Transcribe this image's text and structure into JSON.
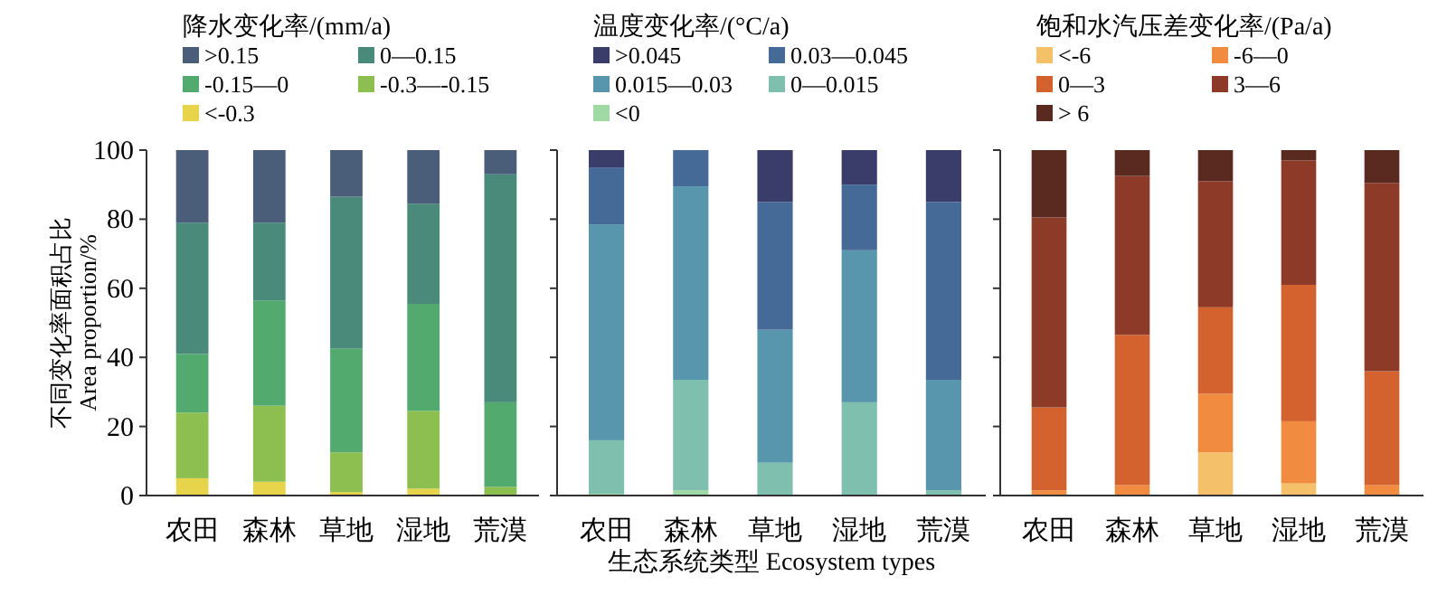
{
  "chart_data": [
    {
      "type": "bar",
      "stacked": true,
      "legend_title": "降水变化率/(mm/a)",
      "ylabel": "不同变化率面积占比 Area proportion/%",
      "categories": [
        "农田",
        "森林",
        "草地",
        "湿地",
        "荒漠"
      ],
      "ylim": [
        0,
        100
      ],
      "yticks": [
        0,
        20,
        40,
        60,
        80,
        100
      ],
      "legend": "top",
      "series": [
        {
          "name": "<-0.3",
          "color": "#e8d44a",
          "values": [
            5,
            4,
            1,
            2,
            0
          ]
        },
        {
          "name": "-0.3—-0.15",
          "color": "#8cbf50",
          "values": [
            19,
            22,
            11.5,
            22.5,
            2.5
          ]
        },
        {
          "name": "-0.15—0",
          "color": "#52aa6e",
          "values": [
            17,
            30.5,
            30,
            31,
            24.5
          ]
        },
        {
          "name": "0—0.15",
          "color": "#4a8a7a",
          "values": [
            38,
            22.5,
            44,
            29,
            66
          ]
        },
        {
          "name": ">0.15",
          "color": "#4a5e7a",
          "values": [
            21,
            21,
            13.5,
            15.5,
            7
          ]
        }
      ]
    },
    {
      "type": "bar",
      "stacked": true,
      "legend_title": "温度变化率/(°C/a)",
      "xlabel": "生态系统类型 Ecosystem types",
      "categories": [
        "农田",
        "森林",
        "草地",
        "湿地",
        "荒漠"
      ],
      "ylim": [
        0,
        100
      ],
      "yticks": [
        0,
        20,
        40,
        60,
        80,
        100
      ],
      "tick_labels": "x",
      "legend": "top",
      "series": [
        {
          "name": "<0",
          "color": "#9fd9a3",
          "values": [
            0.5,
            1.5,
            0,
            0,
            0
          ]
        },
        {
          "name": "0—0.015",
          "color": "#7ebfae",
          "values": [
            15.5,
            32,
            9.5,
            27,
            1.5
          ]
        },
        {
          "name": "0.015—0.03",
          "color": "#5896ad",
          "values": [
            62.5,
            56,
            38.5,
            44,
            32
          ]
        },
        {
          "name": "0.03—0.045",
          "color": "#466a98",
          "values": [
            16.5,
            10.5,
            37,
            19,
            51.5
          ]
        },
        {
          "name": ">0.045",
          "color": "#3a3d6a",
          "values": [
            5,
            0,
            15,
            10,
            15
          ]
        }
      ]
    },
    {
      "type": "bar",
      "stacked": true,
      "legend_title": "饱和水汽压差变化率/(Pa/a)",
      "categories": [
        "农田",
        "森林",
        "草地",
        "湿地",
        "荒漠"
      ],
      "ylim": [
        0,
        100
      ],
      "yticks": [
        0,
        20,
        40,
        60,
        80,
        100
      ],
      "tick_labels": "x",
      "legend": "top",
      "series": [
        {
          "name": "<-6",
          "color": "#f5c06a",
          "values": [
            0,
            0,
            12.5,
            3.5,
            0
          ]
        },
        {
          "name": "-6—0",
          "color": "#f08b40",
          "values": [
            1.5,
            3,
            17,
            18,
            3
          ]
        },
        {
          "name": "0—3",
          "color": "#d4622f",
          "values": [
            24,
            43.5,
            25,
            39.5,
            33
          ]
        },
        {
          "name": "3—6",
          "color": "#8e3a28",
          "values": [
            55,
            46,
            36.5,
            36,
            54.5
          ]
        },
        {
          "name": "> 6",
          "color": "#5a2a20",
          "values": [
            19.5,
            7.5,
            9,
            3,
            9.5
          ]
        }
      ]
    }
  ]
}
